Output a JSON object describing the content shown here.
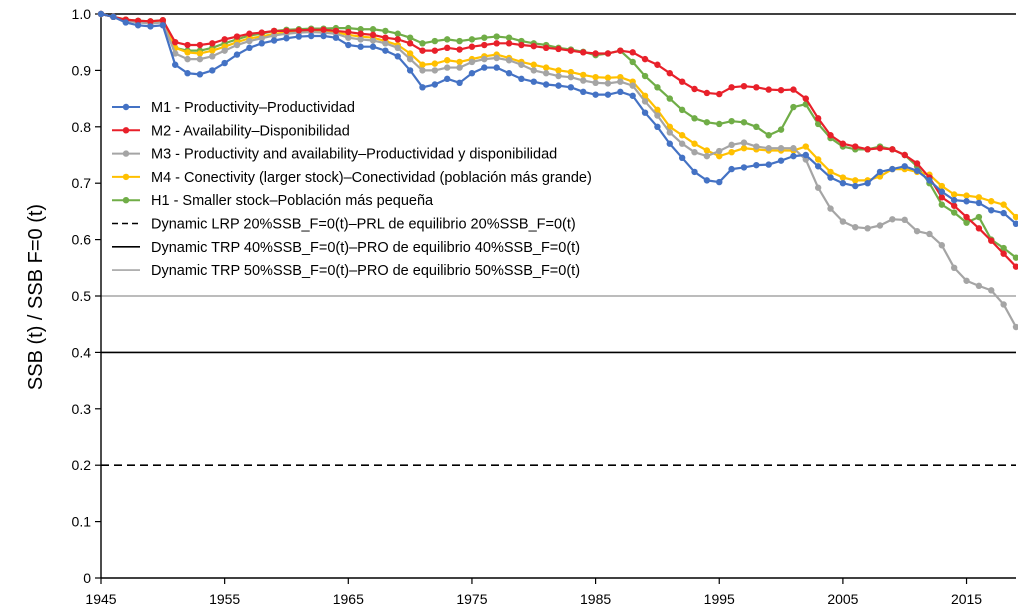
{
  "chart_data": {
    "type": "line",
    "title": "",
    "xlabel": "",
    "ylabel": "SSB (t) / SSB F=0 (t)",
    "xlim": [
      1945,
      2019
    ],
    "ylim": [
      0,
      1.0
    ],
    "x_ticks": [
      "1945",
      "1955",
      "1965",
      "1975",
      "1985",
      "1995",
      "2005",
      "2015"
    ],
    "y_ticks": [
      "0",
      "0.1",
      "0.2",
      "0.3",
      "0.4",
      "0.5",
      "0.6",
      "0.7",
      "0.8",
      "0.9",
      "1.0"
    ],
    "grid": false,
    "legend_position": "top-left",
    "x": [
      1945,
      1946,
      1947,
      1948,
      1949,
      1950,
      1951,
      1952,
      1953,
      1954,
      1955,
      1956,
      1957,
      1958,
      1959,
      1960,
      1961,
      1962,
      1963,
      1964,
      1965,
      1966,
      1967,
      1968,
      1969,
      1970,
      1971,
      1972,
      1973,
      1974,
      1975,
      1976,
      1977,
      1978,
      1979,
      1980,
      1981,
      1982,
      1983,
      1984,
      1985,
      1986,
      1987,
      1988,
      1989,
      1990,
      1991,
      1992,
      1993,
      1994,
      1995,
      1996,
      1997,
      1998,
      1999,
      2000,
      2001,
      2002,
      2003,
      2004,
      2005,
      2006,
      2007,
      2008,
      2009,
      2010,
      2011,
      2012,
      2013,
      2014,
      2015,
      2016,
      2017,
      2018,
      2019
    ],
    "series": [
      {
        "name": "M1 - Productivity–Productividad",
        "color": "#4472c4",
        "marker": true,
        "values": [
          1.0,
          0.995,
          0.985,
          0.98,
          0.978,
          0.98,
          0.91,
          0.895,
          0.893,
          0.9,
          0.913,
          0.928,
          0.94,
          0.948,
          0.953,
          0.957,
          0.96,
          0.961,
          0.961,
          0.958,
          0.945,
          0.942,
          0.942,
          0.935,
          0.925,
          0.9,
          0.87,
          0.875,
          0.885,
          0.878,
          0.895,
          0.905,
          0.905,
          0.895,
          0.885,
          0.88,
          0.875,
          0.873,
          0.87,
          0.862,
          0.857,
          0.857,
          0.862,
          0.855,
          0.825,
          0.8,
          0.77,
          0.745,
          0.72,
          0.705,
          0.702,
          0.725,
          0.728,
          0.732,
          0.733,
          0.74,
          0.748,
          0.75,
          0.73,
          0.71,
          0.7,
          0.695,
          0.7,
          0.72,
          0.725,
          0.73,
          0.722,
          0.705,
          0.685,
          0.67,
          0.668,
          0.665,
          0.652,
          0.647,
          0.628
        ]
      },
      {
        "name": "M2 - Availability–Disponibilidad",
        "color": "#e8202a",
        "marker": true,
        "values": [
          1.0,
          0.995,
          0.99,
          0.988,
          0.987,
          0.989,
          0.95,
          0.945,
          0.945,
          0.948,
          0.955,
          0.96,
          0.965,
          0.967,
          0.97,
          0.97,
          0.971,
          0.972,
          0.972,
          0.97,
          0.968,
          0.965,
          0.963,
          0.958,
          0.955,
          0.948,
          0.935,
          0.935,
          0.94,
          0.937,
          0.942,
          0.945,
          0.948,
          0.948,
          0.945,
          0.943,
          0.94,
          0.938,
          0.935,
          0.932,
          0.93,
          0.93,
          0.935,
          0.932,
          0.92,
          0.91,
          0.895,
          0.88,
          0.867,
          0.86,
          0.858,
          0.87,
          0.872,
          0.87,
          0.866,
          0.865,
          0.866,
          0.85,
          0.815,
          0.785,
          0.77,
          0.765,
          0.76,
          0.762,
          0.76,
          0.75,
          0.735,
          0.71,
          0.675,
          0.66,
          0.64,
          0.62,
          0.598,
          0.575,
          0.552
        ]
      },
      {
        "name": "M3 - Productivity and availability–Productividad y disponibilidad",
        "color": "#a5a5a5",
        "marker": true,
        "values": [
          1.0,
          0.995,
          0.988,
          0.985,
          0.983,
          0.985,
          0.93,
          0.92,
          0.92,
          0.925,
          0.935,
          0.945,
          0.952,
          0.957,
          0.962,
          0.965,
          0.967,
          0.968,
          0.967,
          0.965,
          0.958,
          0.955,
          0.953,
          0.948,
          0.94,
          0.92,
          0.9,
          0.9,
          0.905,
          0.905,
          0.915,
          0.92,
          0.922,
          0.918,
          0.91,
          0.9,
          0.895,
          0.89,
          0.888,
          0.882,
          0.878,
          0.877,
          0.88,
          0.873,
          0.845,
          0.82,
          0.79,
          0.77,
          0.755,
          0.748,
          0.757,
          0.768,
          0.772,
          0.765,
          0.762,
          0.762,
          0.762,
          0.742,
          0.692,
          0.655,
          0.632,
          0.622,
          0.62,
          0.625,
          0.636,
          0.635,
          0.615,
          0.61,
          0.59,
          0.55,
          0.527,
          0.518,
          0.51,
          0.485,
          0.445
        ]
      },
      {
        "name": "M4 - Conectivity (larger stock)–Conectividad (población más grande)",
        "color": "#ffc000",
        "marker": true,
        "values": [
          1.0,
          0.995,
          0.99,
          0.987,
          0.986,
          0.988,
          0.94,
          0.932,
          0.93,
          0.935,
          0.942,
          0.95,
          0.957,
          0.96,
          0.965,
          0.967,
          0.968,
          0.969,
          0.969,
          0.968,
          0.963,
          0.96,
          0.958,
          0.952,
          0.945,
          0.93,
          0.91,
          0.912,
          0.918,
          0.915,
          0.92,
          0.925,
          0.928,
          0.922,
          0.915,
          0.91,
          0.905,
          0.9,
          0.897,
          0.892,
          0.888,
          0.887,
          0.888,
          0.88,
          0.855,
          0.83,
          0.8,
          0.785,
          0.77,
          0.758,
          0.748,
          0.755,
          0.762,
          0.76,
          0.758,
          0.758,
          0.758,
          0.765,
          0.742,
          0.72,
          0.71,
          0.705,
          0.705,
          0.712,
          0.725,
          0.725,
          0.72,
          0.715,
          0.695,
          0.68,
          0.678,
          0.675,
          0.668,
          0.662,
          0.64
        ]
      },
      {
        "name": "H1 - Smaller stock–Población más pequeña",
        "color": "#70ad47",
        "marker": true,
        "values": [
          1.0,
          0.995,
          0.99,
          0.988,
          0.987,
          0.989,
          0.94,
          0.935,
          0.935,
          0.94,
          0.948,
          0.955,
          0.962,
          0.965,
          0.97,
          0.972,
          0.973,
          0.974,
          0.974,
          0.975,
          0.975,
          0.973,
          0.973,
          0.97,
          0.965,
          0.958,
          0.948,
          0.952,
          0.955,
          0.952,
          0.955,
          0.958,
          0.96,
          0.958,
          0.952,
          0.948,
          0.945,
          0.94,
          0.937,
          0.933,
          0.927,
          0.93,
          0.935,
          0.915,
          0.89,
          0.87,
          0.85,
          0.83,
          0.815,
          0.808,
          0.805,
          0.81,
          0.808,
          0.8,
          0.785,
          0.795,
          0.835,
          0.84,
          0.805,
          0.78,
          0.765,
          0.76,
          0.76,
          0.765,
          0.76,
          0.75,
          0.73,
          0.7,
          0.662,
          0.648,
          0.63,
          0.64,
          0.6,
          0.585,
          0.568
        ]
      },
      {
        "name": "Dynamic LRP 20%SSB_F=0(t)–PRL de equilibrio 20%SSB_F=0(t)",
        "color": "#000000",
        "style": "dashed",
        "constant": 0.2
      },
      {
        "name": "Dynamic TRP 40%SSB_F=0(t)–PRO de equilibrio 40%SSB_F=0(t)",
        "color": "#000000",
        "style": "solid",
        "constant": 0.4
      },
      {
        "name": "Dynamic TRP 50%SSB_F=0(t)–PRO de equilibrio 50%SSB_F=0(t)",
        "color": "#a5a5a5",
        "style": "solid",
        "constant": 0.5
      }
    ]
  }
}
